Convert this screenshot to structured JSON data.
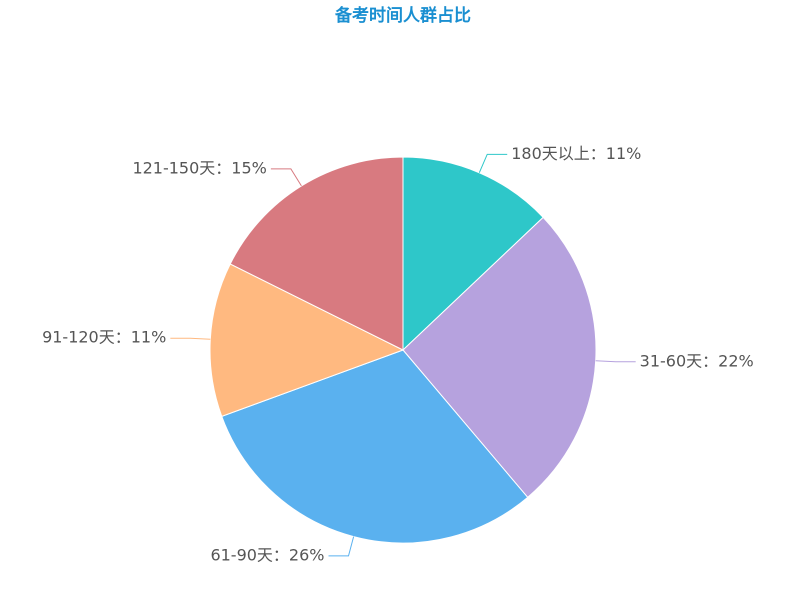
{
  "chart_data": {
    "type": "pie",
    "title": "备考时间人群占比",
    "values": [
      11,
      22,
      26,
      11,
      15
    ],
    "value_labels": [
      "180天以上：11%",
      "31-60天：22%",
      "61-90天：26%",
      "91-120天：11%",
      "121-150天：15%"
    ],
    "colors": [
      "#2ec7c9",
      "#b6a2de",
      "#5ab1ef",
      "#ffb980",
      "#d87a80"
    ]
  }
}
